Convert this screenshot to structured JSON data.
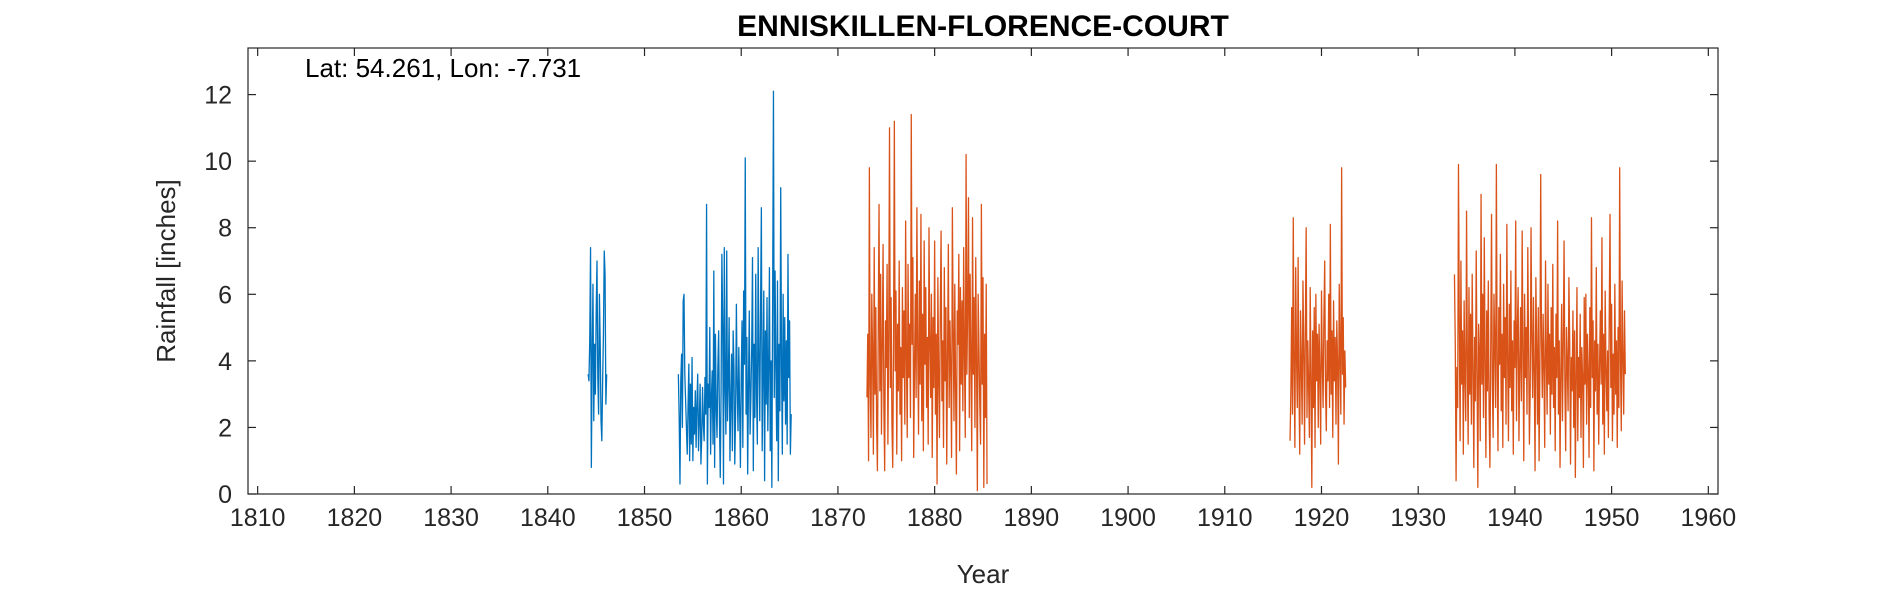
{
  "chart_data": {
    "type": "line",
    "title": "ENNISKILLEN-FLORENCE-COURT",
    "annotation": "Lat: 54.261, Lon: -7.731",
    "xlabel": "Year",
    "ylabel": "Rainfall [inches]",
    "xlim": [
      1809,
      1961
    ],
    "ylim": [
      0,
      13.4
    ],
    "xticks": [
      1810,
      1820,
      1830,
      1840,
      1850,
      1860,
      1870,
      1880,
      1890,
      1900,
      1910,
      1920,
      1930,
      1940,
      1950,
      1960
    ],
    "yticks": [
      0,
      2,
      4,
      6,
      8,
      10,
      12
    ],
    "grid": false,
    "box": true,
    "series": [
      {
        "color": "#0072BD",
        "segments": [
          {
            "start": 1844.17,
            "values": [
              3.6,
              3.4,
              4.6,
              7.4,
              0.8,
              4.1,
              6.3,
              2.2,
              4.5,
              3.0,
              5.5,
              7.0,
              3.5,
              2.4,
              6.0,
              4.5,
              2.2,
              1.6,
              3.4,
              4.8,
              7.3,
              6.6,
              2.7,
              3.6
            ]
          },
          {
            "start": 1853.5,
            "values": [
              3.6,
              2.3,
              0.3,
              3.4,
              4.2,
              2.0,
              5.8,
              6.0,
              3.6,
              2.8,
              2.0,
              1.2,
              2.6,
              3.9,
              1.0,
              3.3,
              1.5,
              4.1,
              1.0,
              2.6,
              1.8,
              3.1,
              1.4,
              2.7,
              3.6,
              1.3,
              2.2,
              3.3,
              0.9,
              1.7,
              3.2,
              2.1,
              1.6,
              3.5,
              2.4,
              8.7,
              0.3,
              3.3,
              2.6,
              5.0,
              1.2,
              2.9,
              3.7,
              1.5,
              6.7,
              0.8,
              4.8,
              2.6,
              1.7,
              3.8,
              4.9,
              2.2,
              0.5,
              3.1,
              7.2,
              5.1,
              0.3,
              7.4,
              3.2,
              1.8,
              7.3,
              2.2,
              3.4,
              5.3,
              1.0,
              2.7,
              4.2,
              1.3,
              4.9,
              3.8,
              0.9,
              2.4,
              5.7,
              3.2,
              1.9,
              4.4,
              2.6,
              0.8,
              3.5,
              5.2,
              1.4,
              6.1,
              3.9,
              10.1,
              2.4,
              4.7,
              0.6,
              3.3,
              5.5,
              1.8,
              2.9,
              4.4,
              7.1,
              0.7,
              4.5,
              2.3,
              6.6,
              3.0,
              1.5,
              7.4,
              4.1,
              2.2,
              5.6,
              8.6,
              1.3,
              3.6,
              6.1,
              0.4,
              4.9,
              2.7,
              5.9,
              1.9,
              3.9,
              6.8,
              1.3,
              4.0,
              0.2,
              5.9,
              12.1,
              2.9,
              6.7,
              3.7,
              1.6,
              6.4,
              0.4,
              4.5,
              2.5,
              9.2,
              3.9,
              1.2,
              6.0,
              2.8,
              5.3,
              2.1,
              4.6,
              1.5,
              7.2,
              3.5,
              5.2,
              1.2,
              2.4
            ]
          }
        ]
      },
      {
        "color": "#D95319",
        "segments": [
          {
            "start": 1873.0,
            "values": [
              2.9,
              4.8,
              1.0,
              9.8,
              3.3,
              1.7,
              6.0,
              4.2,
              1.2,
              7.4,
              3.0,
              5.6,
              2.1,
              0.7,
              4.9,
              8.7,
              3.1,
              6.6,
              1.8,
              4.4,
              7.5,
              2.6,
              0.7,
              5.2,
              3.8,
              6.9,
              1.5,
              4.7,
              11.0,
              3.2,
              5.9,
              2.1,
              0.8,
              4.6,
              11.2,
              3.7,
              6.1,
              1.2,
              5.1,
              3.1,
              7.0,
              2.4,
              4.4,
              1.0,
              6.2,
              3.5,
              5.5,
              2.1,
              8.2,
              4.0,
              1.7,
              6.9,
              3.5,
              5.1,
              2.3,
              11.4,
              4.5,
              7.1,
              1.1,
              3.8,
              6.0,
              2.9,
              8.6,
              4.3,
              1.8,
              6.4,
              3.3,
              8.4,
              2.2,
              5.4,
              1.3,
              7.6,
              3.9,
              6.2,
              2.6,
              4.7,
              1.5,
              8.0,
              4.5,
              2.9,
              6.0,
              1.1,
              5.3,
              3.2,
              7.6,
              2.4,
              4.8,
              0.3,
              6.5,
              3.5,
              1.7,
              5.5,
              7.9,
              2.8,
              4.6,
              1.4,
              6.8,
              3.4,
              5.6,
              0.9,
              4.1,
              7.5,
              2.6,
              5.2,
              3.7,
              1.1,
              8.6,
              4.9,
              2.2,
              6.3,
              3.1,
              0.6,
              5.5,
              4.5,
              7.2,
              1.3,
              6.2,
              3.3,
              5.8,
              2.5,
              7.4,
              4.1,
              1.7,
              10.2,
              3.6,
              5.6,
              8.9,
              2.3,
              6.6,
              4.0,
              1.3,
              8.3,
              3.6,
              5.9,
              2.0,
              7.1,
              3.9,
              0.1,
              6.0,
              4.4,
              2.7,
              1.5,
              8.7,
              3.3,
              6.5,
              0.2,
              4.8,
              2.3,
              6.3,
              0.3
            ]
          },
          {
            "start": 1916.75,
            "values": [
              1.6,
              3.1,
              5.6,
              2.4,
              8.3,
              3.7,
              1.4,
              6.8,
              4.2,
              2.6,
              7.1,
              3.2,
              1.2,
              5.5,
              3.9,
              2.1,
              6.4,
              4.4,
              1.5,
              5.0,
              8.0,
              2.3,
              4.6,
              3.3,
              1.7,
              6.2,
              3.5,
              0.2,
              4.9,
              2.6,
              5.6,
              1.4,
              6.0,
              3.4,
              4.8,
              2.0,
              5.1,
              3.6,
              1.5,
              6.1,
              4.0,
              2.6,
              5.3,
              7.0,
              3.1,
              1.9,
              4.6,
              3.4,
              6.0,
              2.6,
              8.1,
              3.0,
              4.9,
              1.7,
              5.8,
              3.4,
              4.7,
              2.1,
              5.2,
              3.9,
              0.9,
              6.3,
              4.2,
              2.4,
              9.8,
              3.6,
              5.3,
              2.1,
              4.3,
              3.2
            ]
          },
          {
            "start": 1933.75,
            "values": [
              6.6,
              4.5,
              0.4,
              3.8,
              2.6,
              9.9,
              5.1,
              1.6,
              7.0,
              3.3,
              4.9,
              1.2,
              5.8,
              3.5,
              2.2,
              8.5,
              4.0,
              1.5,
              6.2,
              3.0,
              5.4,
              2.1,
              6.6,
              3.8,
              0.8,
              4.7,
              2.8,
              7.3,
              3.6,
              0.2,
              5.1,
              4.2,
              1.6,
              9.0,
              3.3,
              6.0,
              2.3,
              7.7,
              4.0,
              1.1,
              5.5,
              3.1,
              6.4,
              2.5,
              0.8,
              4.4,
              8.4,
              3.3,
              1.7,
              6.0,
              4.5,
              2.6,
              9.9,
              3.8,
              1.3,
              5.6,
              3.9,
              7.2,
              2.5,
              4.8,
              1.4,
              6.3,
              3.5,
              5.3,
              2.1,
              8.1,
              4.0,
              1.6,
              5.7,
              3.2,
              6.7,
              2.5,
              4.6,
              1.2,
              5.2,
              3.8,
              8.2,
              2.2,
              4.9,
              6.2,
              1.6,
              3.8,
              5.6,
              2.8,
              7.9,
              4.3,
              1.0,
              6.0,
              3.5,
              5.0,
              2.4,
              7.4,
              4.3,
              1.5,
              3.2,
              8.0,
              4.7,
              2.9,
              5.9,
              3.6,
              0.7,
              6.5,
              4.4,
              2.1,
              5.6,
              1.0,
              3.8,
              9.6,
              4.6,
              2.9,
              5.4,
              3.7,
              1.4,
              7.0,
              4.1,
              2.4,
              6.3,
              3.3,
              4.8,
              1.8,
              5.6,
              3.0,
              6.9,
              2.6,
              4.4,
              1.3,
              5.4,
              3.5,
              8.2,
              2.4,
              4.6,
              0.8,
              3.7,
              5.7,
              2.2,
              4.4,
              7.6,
              3.3,
              1.3,
              5.0,
              3.9,
              2.5,
              6.5,
              4.6,
              0.9,
              4.1,
              3.1,
              5.5,
              2.0,
              4.9,
              0.5,
              3.6,
              6.2,
              1.6,
              4.1,
              2.9,
              5.4,
              1.7,
              4.4,
              3.5,
              0.8,
              5.9,
              3.3,
              6.0,
              2.1,
              4.8,
              3.7,
              1.1,
              5.6,
              2.6,
              8.3,
              3.5,
              5.2,
              0.7,
              4.6,
              3.1,
              6.8,
              2.4,
              4.5,
              1.5,
              3.8,
              5.5,
              3.3,
              7.7,
              2.1,
              4.8,
              1.2,
              6.1,
              3.8,
              2.5,
              4.3,
              1.7,
              5.2,
              8.4,
              3.2,
              5.7,
              1.6,
              4.2,
              2.4,
              6.3,
              3.0,
              4.6,
              1.4,
              5.0,
              2.6,
              9.8,
              4.0,
              1.9,
              6.4,
              4.1,
              2.4,
              5.5,
              3.6
            ]
          }
        ]
      }
    ]
  }
}
